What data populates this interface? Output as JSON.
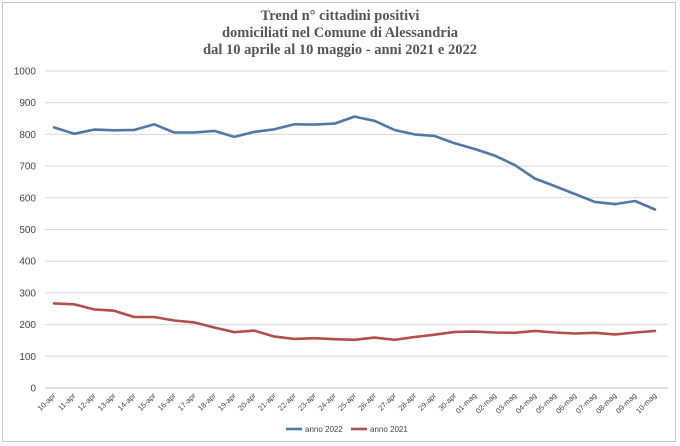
{
  "chart_data": {
    "type": "line",
    "title_lines": [
      "Trend n° cittadini positivi",
      "domiciliati nel Comune di Alessandria",
      "dal 10 aprile al 10 maggio - anni 2021 e 2022"
    ],
    "categories": [
      "10-apr",
      "11-apr",
      "12-apr",
      "13-apr",
      "14-apr",
      "15-apr",
      "16-apr",
      "17-apr",
      "18-apr",
      "19-apr",
      "20-apr",
      "21-apr",
      "22-apr",
      "23-apr",
      "24-apr",
      "25-apr",
      "26-apr",
      "27-apr",
      "28-apr",
      "29-apr",
      "30-apr",
      "01-mag",
      "02-mag",
      "03-mag",
      "04-mag",
      "05-mag",
      "06-mag",
      "07-mag",
      "08-mag",
      "09-mag",
      "10-mag"
    ],
    "yticks": [
      "0",
      "100",
      "200",
      "300",
      "400",
      "500",
      "600",
      "700",
      "800",
      "900",
      "1000"
    ],
    "ylim": [
      0,
      1000
    ],
    "grid": true,
    "legend_position": "bottom",
    "series": [
      {
        "name": "anno 2022",
        "color": "#4f78a8",
        "values": [
          822,
          802,
          815,
          813,
          814,
          832,
          806,
          806,
          811,
          792,
          808,
          816,
          832,
          831,
          834,
          856,
          843,
          814,
          800,
          795,
          772,
          754,
          733,
          703,
          661,
          637,
          612,
          587,
          580,
          590,
          563
        ]
      },
      {
        "name": "anno 2021",
        "color": "#b0504c",
        "values": [
          267,
          264,
          248,
          244,
          224,
          224,
          213,
          207,
          191,
          176,
          181,
          162,
          155,
          157,
          154,
          152,
          159,
          152,
          161,
          168,
          177,
          178,
          175,
          174,
          180,
          175,
          172,
          174,
          169,
          175,
          180
        ]
      }
    ]
  }
}
